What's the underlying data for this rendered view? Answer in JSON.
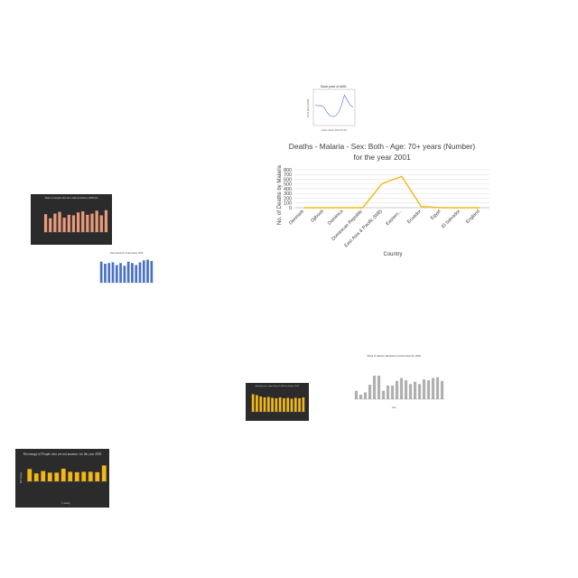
{
  "chart_data": [
    {
      "type": "line",
      "title": "Deaths - Malaria - Sex: Both - Age: 70+ years (Number)",
      "subtitle": "for the year 2001",
      "xlabel": "Country",
      "ylabel": "No. of Deaths by Malaria",
      "categories": [
        "Denmark",
        "Djibouti",
        "Dominica",
        "Dominican Republic",
        "East Asia & Pacific (WB)",
        "Eastern...",
        "Ecuador",
        "Egypt",
        "El Salvador",
        "England"
      ],
      "values": [
        0,
        0,
        0,
        0,
        510,
        660,
        25,
        0,
        0,
        0
      ],
      "ylim": [
        0,
        800
      ],
      "yticks": [
        0,
        100,
        200,
        300,
        400,
        500,
        600,
        700,
        800
      ],
      "colors": {
        "line": "#f2b816"
      },
      "grid": true
    },
    {
      "type": "line",
      "title": "Stock price of AMD",
      "xlabel": "Open Close 2017-07-19",
      "ylabel": "Stock price (USD)",
      "values": [
        0.58,
        0.55,
        0.56,
        0.5,
        0.36,
        0.25,
        0.22,
        0.24,
        0.35,
        0.56,
        0.88,
        0.72,
        0.57,
        0.51
      ],
      "colors": {
        "line": "#4a6fd0"
      }
    },
    {
      "type": "bar",
      "title": "Share of people who are undernourished, 2000 (%)",
      "values": [
        62,
        48,
        64,
        70,
        50,
        60,
        58,
        68,
        72,
        60,
        64,
        74,
        58,
        76
      ],
      "ylim": [
        0,
        100
      ],
      "colors": {
        "bar": "#e89a7a",
        "background": "#2b2b2b"
      }
    },
    {
      "type": "bar",
      "title": "Forest area (% of land area), 2015",
      "values": [
        62,
        56,
        58,
        60,
        52,
        58,
        50,
        62,
        58,
        52,
        60,
        66,
        68,
        64
      ],
      "ylim": [
        0,
        80
      ],
      "colors": {
        "bar": "#4a72c4"
      }
    },
    {
      "type": "bar",
      "title": "Share of calories allocated to animal feed (%), 2000",
      "xlabel": "Year",
      "values": [
        22,
        12,
        18,
        38,
        62,
        62,
        22,
        36,
        36,
        48,
        56,
        50,
        40,
        46,
        40,
        52,
        50,
        56,
        58,
        48
      ],
      "ylim": [
        0,
        100
      ],
      "colors": {
        "bar": "#b0b0b0"
      }
    },
    {
      "type": "bar",
      "title": "Mortality rate, under-5 (per 1,000 live births), 2001",
      "values": [
        78,
        74,
        68,
        64,
        66,
        62,
        60,
        64,
        60,
        62,
        58,
        62,
        60,
        64
      ],
      "ylim": [
        0,
        100
      ],
      "colors": {
        "bar": "#f2b816",
        "background": "#2b2b2b"
      }
    },
    {
      "type": "bar",
      "title": "Percentage of People who are not anaemic for the year 2003",
      "xlabel": "Country",
      "ylabel": "Percentage",
      "values": [
        62,
        40,
        52,
        44,
        44,
        64,
        48,
        46,
        48,
        48,
        46,
        80
      ],
      "ylim": [
        0,
        100
      ],
      "colors": {
        "bar": "#f2b816",
        "background": "#2b2b2b"
      }
    }
  ]
}
